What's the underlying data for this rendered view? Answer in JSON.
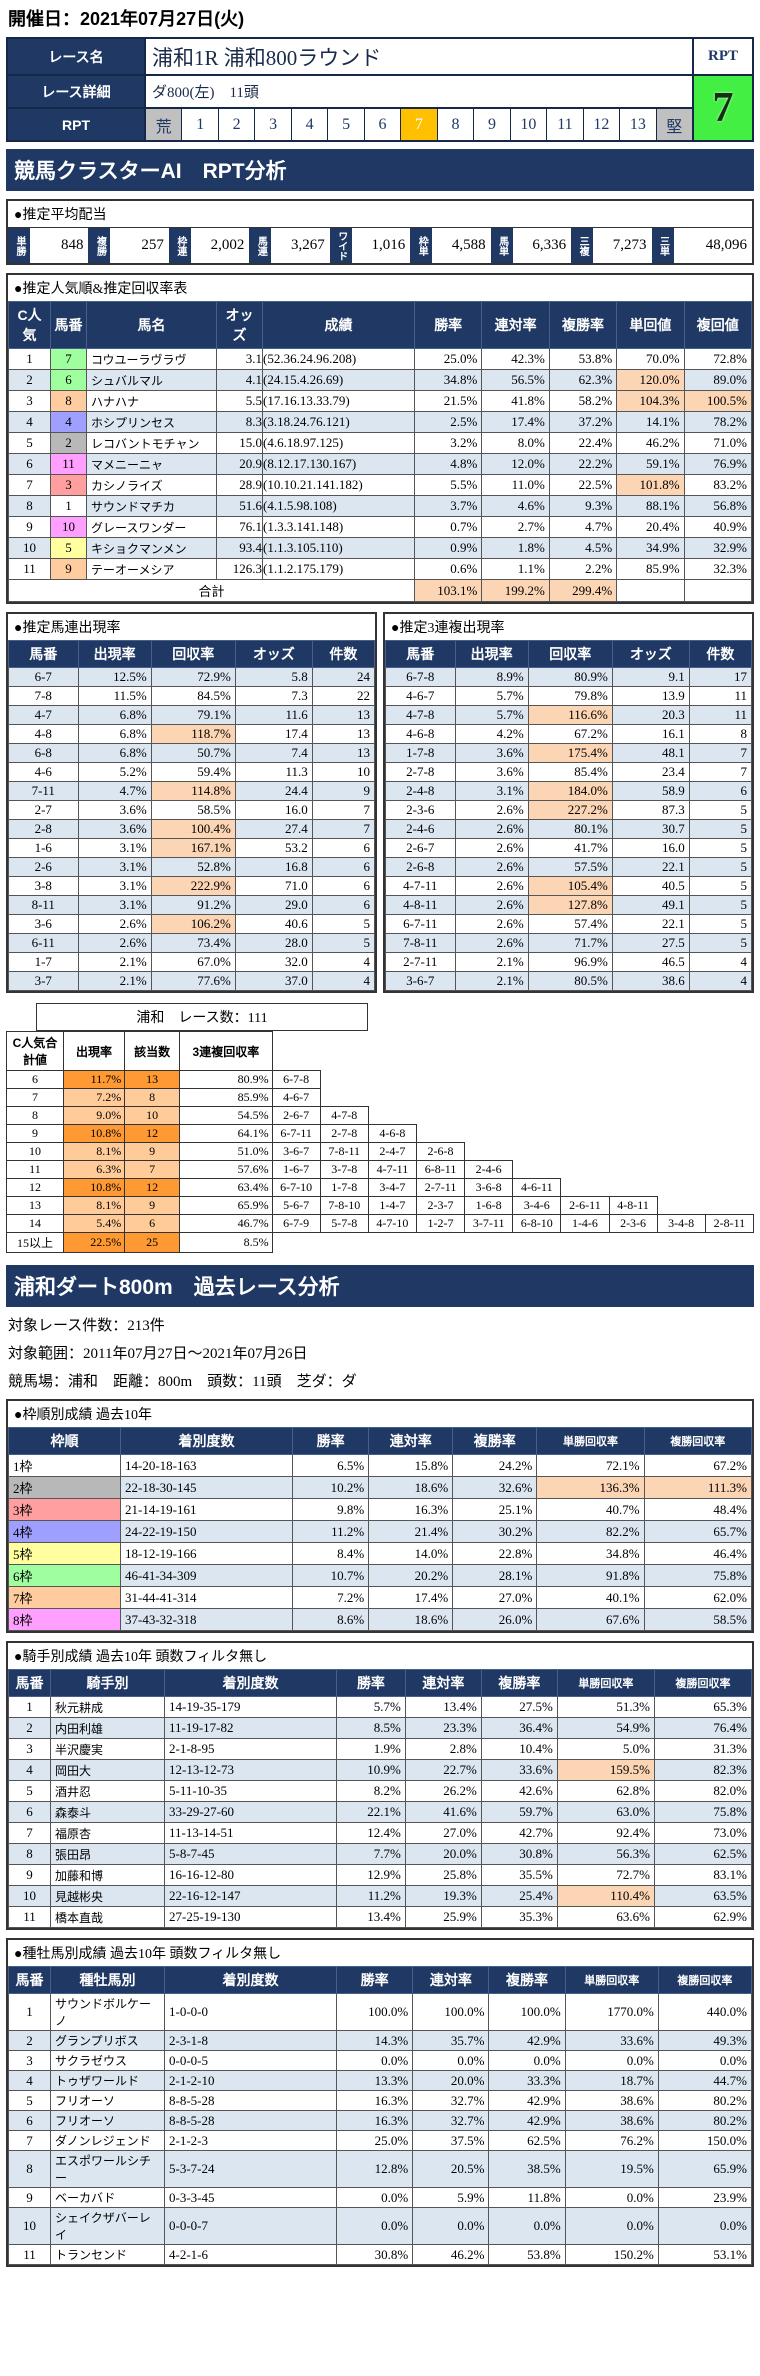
{
  "colors": {
    "navy": "#1f3864",
    "stripe": "#dce6f1",
    "highlight": "#fcd5b4",
    "rpt_selected": "#ffc000",
    "rpt_edge_gray": "#c0c0c0",
    "rpt_big_green": "#44ef44",
    "cpop_high": "#ff9933",
    "cpop_low": "#ffcc99",
    "waku": {
      "1": "#ffffff",
      "2": "#b8b8b8",
      "3": "#ff9f9f",
      "4": "#9f9fff",
      "5": "#ffff9f",
      "6": "#9fff9f",
      "7": "#ffcc9f",
      "8": "#ff9fff"
    }
  },
  "page": {
    "date_header": "開催日：2021年07月27日(火)"
  },
  "race_info": {
    "name_label": "レース名",
    "name": "浦和1R 浦和800ラウンド",
    "detail_label": "レース詳細",
    "detail": "ダ800(左)　11頭",
    "rpt_label": "RPT",
    "rpt_box_label": "RPT",
    "rpt_value": "7",
    "rpt_scale": [
      "荒",
      "1",
      "2",
      "3",
      "4",
      "5",
      "6",
      "7",
      "8",
      "9",
      "10",
      "11",
      "12",
      "13",
      "堅"
    ],
    "rpt_selected": "7"
  },
  "section1": {
    "title": "競馬クラスターAI　RPT分析"
  },
  "payouts": {
    "title": "●推定平均配当",
    "items": [
      {
        "label": "単勝",
        "value": "848"
      },
      {
        "label": "複勝",
        "value": "257"
      },
      {
        "label": "枠連",
        "value": "2,002"
      },
      {
        "label": "馬連",
        "value": "3,267"
      },
      {
        "label": "ワイド",
        "value": "1,016"
      },
      {
        "label": "枠単",
        "value": "4,588"
      },
      {
        "label": "馬単",
        "value": "6,336"
      },
      {
        "label": "三複",
        "value": "7,273"
      },
      {
        "label": "三単",
        "value": "48,096"
      }
    ]
  },
  "popularity_table": {
    "title": "●推定人気順&推定回収率表",
    "headers": [
      "C人気",
      "馬番",
      "馬名",
      "オッズ",
      "成績",
      "勝率",
      "連対率",
      "複勝率",
      "単回値",
      "複回値"
    ],
    "rows": [
      {
        "rank": "1",
        "num": "7",
        "waku": 6,
        "name": "コウユーラヴラヴ",
        "odds": "3.1",
        "record": "(52.36.24.96.208)",
        "values": [
          "25.0%",
          "42.3%",
          "53.8%",
          "70.0%",
          "72.8%"
        ]
      },
      {
        "rank": "2",
        "num": "6",
        "waku": 6,
        "name": "シュバルマル",
        "odds": "4.1",
        "record": "(24.15.4.26.69)",
        "values": [
          "34.8%",
          "56.5%",
          "62.3%",
          "120.0%",
          "89.0%"
        ]
      },
      {
        "rank": "3",
        "num": "8",
        "waku": 7,
        "name": "ハナハナ",
        "odds": "5.5",
        "record": "(17.16.13.33.79)",
        "values": [
          "21.5%",
          "41.8%",
          "58.2%",
          "104.3%",
          "100.5%"
        ]
      },
      {
        "rank": "4",
        "num": "4",
        "waku": 4,
        "name": "ホシプリンセス",
        "odds": "8.3",
        "record": "(3.18.24.76.121)",
        "values": [
          "2.5%",
          "17.4%",
          "37.2%",
          "14.1%",
          "78.2%"
        ]
      },
      {
        "rank": "5",
        "num": "2",
        "waku": 2,
        "name": "レコバントモチャン",
        "odds": "15.0",
        "record": "(4.6.18.97.125)",
        "values": [
          "3.2%",
          "8.0%",
          "22.4%",
          "46.2%",
          "71.0%"
        ]
      },
      {
        "rank": "6",
        "num": "11",
        "waku": 8,
        "name": "マメニーニャ",
        "odds": "20.9",
        "record": "(8.12.17.130.167)",
        "values": [
          "4.8%",
          "12.0%",
          "22.2%",
          "59.1%",
          "76.9%"
        ]
      },
      {
        "rank": "7",
        "num": "3",
        "waku": 3,
        "name": "カシノライズ",
        "odds": "28.9",
        "record": "(10.10.21.141.182)",
        "values": [
          "5.5%",
          "11.0%",
          "22.5%",
          "101.8%",
          "83.2%"
        ]
      },
      {
        "rank": "8",
        "num": "1",
        "waku": 1,
        "name": "サウンドマチカ",
        "odds": "51.6",
        "record": "(4.1.5.98.108)",
        "values": [
          "3.7%",
          "4.6%",
          "9.3%",
          "88.1%",
          "56.8%"
        ]
      },
      {
        "rank": "9",
        "num": "10",
        "waku": 8,
        "name": "グレースワンダー",
        "odds": "76.1",
        "record": "(1.3.3.141.148)",
        "values": [
          "0.7%",
          "2.7%",
          "4.7%",
          "20.4%",
          "40.9%"
        ]
      },
      {
        "rank": "10",
        "num": "5",
        "waku": 5,
        "name": "キショクマンメン",
        "odds": "93.4",
        "record": "(1.1.3.105.110)",
        "values": [
          "0.9%",
          "1.8%",
          "4.5%",
          "34.9%",
          "32.9%"
        ]
      },
      {
        "rank": "11",
        "num": "9",
        "waku": 7,
        "name": "テーオーメシア",
        "odds": "126.3",
        "record": "(1.1.2.175.179)",
        "values": [
          "0.6%",
          "1.1%",
          "2.2%",
          "85.9%",
          "32.3%"
        ]
      }
    ],
    "total": {
      "label": "合計",
      "values": [
        "103.1%",
        "199.2%",
        "299.4%"
      ]
    }
  },
  "umaren_table": {
    "title": "●推定馬連出現率",
    "headers": [
      "馬番",
      "出現率",
      "回収率",
      "オッズ",
      "件数"
    ],
    "rows": [
      [
        "6-7",
        "12.5%",
        "72.9%",
        "5.8",
        "24"
      ],
      [
        "7-8",
        "11.5%",
        "84.5%",
        "7.3",
        "22"
      ],
      [
        "4-7",
        "6.8%",
        "79.1%",
        "11.6",
        "13"
      ],
      [
        "4-8",
        "6.8%",
        "118.7%",
        "17.4",
        "13"
      ],
      [
        "6-8",
        "6.8%",
        "50.7%",
        "7.4",
        "13"
      ],
      [
        "4-6",
        "5.2%",
        "59.4%",
        "11.3",
        "10"
      ],
      [
        "7-11",
        "4.7%",
        "114.8%",
        "24.4",
        "9"
      ],
      [
        "2-7",
        "3.6%",
        "58.5%",
        "16.0",
        "7"
      ],
      [
        "2-8",
        "3.6%",
        "100.4%",
        "27.4",
        "7"
      ],
      [
        "1-6",
        "3.1%",
        "167.1%",
        "53.2",
        "6"
      ],
      [
        "2-6",
        "3.1%",
        "52.8%",
        "16.8",
        "6"
      ],
      [
        "3-8",
        "3.1%",
        "222.9%",
        "71.0",
        "6"
      ],
      [
        "8-11",
        "3.1%",
        "91.2%",
        "29.0",
        "6"
      ],
      [
        "3-6",
        "2.6%",
        "106.2%",
        "40.6",
        "5"
      ],
      [
        "6-11",
        "2.6%",
        "73.4%",
        "28.0",
        "5"
      ],
      [
        "1-7",
        "2.1%",
        "67.0%",
        "32.0",
        "4"
      ],
      [
        "3-7",
        "2.1%",
        "77.6%",
        "37.0",
        "4"
      ]
    ]
  },
  "sanren_table": {
    "title": "●推定3連複出現率",
    "headers": [
      "馬番",
      "出現率",
      "回収率",
      "オッズ",
      "件数"
    ],
    "rows": [
      [
        "6-7-8",
        "8.9%",
        "80.9%",
        "9.1",
        "17"
      ],
      [
        "4-6-7",
        "5.7%",
        "79.8%",
        "13.9",
        "11"
      ],
      [
        "4-7-8",
        "5.7%",
        "116.6%",
        "20.3",
        "11"
      ],
      [
        "4-6-8",
        "4.2%",
        "67.2%",
        "16.1",
        "8"
      ],
      [
        "1-7-8",
        "3.6%",
        "175.4%",
        "48.1",
        "7"
      ],
      [
        "2-7-8",
        "3.6%",
        "85.4%",
        "23.4",
        "7"
      ],
      [
        "2-4-8",
        "3.1%",
        "184.0%",
        "58.9",
        "6"
      ],
      [
        "2-3-6",
        "2.6%",
        "227.2%",
        "87.3",
        "5"
      ],
      [
        "2-4-6",
        "2.6%",
        "80.1%",
        "30.7",
        "5"
      ],
      [
        "2-6-7",
        "2.6%",
        "41.7%",
        "16.0",
        "5"
      ],
      [
        "2-6-8",
        "2.6%",
        "57.5%",
        "22.1",
        "5"
      ],
      [
        "4-7-11",
        "2.6%",
        "105.4%",
        "40.5",
        "5"
      ],
      [
        "4-8-11",
        "2.6%",
        "127.8%",
        "49.1",
        "5"
      ],
      [
        "6-7-11",
        "2.6%",
        "57.4%",
        "22.1",
        "5"
      ],
      [
        "7-8-11",
        "2.6%",
        "71.7%",
        "27.5",
        "5"
      ],
      [
        "2-7-11",
        "2.1%",
        "96.9%",
        "46.5",
        "4"
      ],
      [
        "3-6-7",
        "2.1%",
        "80.5%",
        "38.6",
        "4"
      ]
    ]
  },
  "cpop_table": {
    "race_count_label": "浦和　レース数：111",
    "headers": [
      "C人気合計値",
      "出現率",
      "該当数",
      "3連複回収率"
    ],
    "rows": [
      {
        "label": "6",
        "rate": "11.7%",
        "count": "13",
        "payback": "80.9%",
        "level": "high",
        "combos": [
          "6-7-8"
        ]
      },
      {
        "label": "7",
        "rate": "7.2%",
        "count": "8",
        "payback": "85.9%",
        "level": "low",
        "combos": [
          "4-6-7"
        ]
      },
      {
        "label": "8",
        "rate": "9.0%",
        "count": "10",
        "payback": "54.5%",
        "level": "low",
        "combos": [
          "2-6-7",
          "4-7-8"
        ]
      },
      {
        "label": "9",
        "rate": "10.8%",
        "count": "12",
        "payback": "64.1%",
        "level": "high",
        "combos": [
          "6-7-11",
          "2-7-8",
          "4-6-8"
        ]
      },
      {
        "label": "10",
        "rate": "8.1%",
        "count": "9",
        "payback": "51.0%",
        "level": "low",
        "combos": [
          "3-6-7",
          "7-8-11",
          "2-4-7",
          "2-6-8"
        ]
      },
      {
        "label": "11",
        "rate": "6.3%",
        "count": "7",
        "payback": "57.6%",
        "level": "low",
        "combos": [
          "1-6-7",
          "3-7-8",
          "4-7-11",
          "6-8-11",
          "2-4-6"
        ]
      },
      {
        "label": "12",
        "rate": "10.8%",
        "count": "12",
        "payback": "63.4%",
        "level": "high",
        "combos": [
          "6-7-10",
          "1-7-8",
          "3-4-7",
          "2-7-11",
          "3-6-8",
          "4-6-11"
        ]
      },
      {
        "label": "13",
        "rate": "8.1%",
        "count": "9",
        "payback": "65.9%",
        "level": "low",
        "combos": [
          "5-6-7",
          "7-8-10",
          "1-4-7",
          "2-3-7",
          "1-6-8",
          "3-4-6",
          "2-6-11",
          "4-8-11"
        ]
      },
      {
        "label": "14",
        "rate": "5.4%",
        "count": "6",
        "payback": "46.7%",
        "level": "low",
        "combos": [
          "6-7-9",
          "5-7-8",
          "4-7-10",
          "1-2-7",
          "3-7-11",
          "6-8-10",
          "1-4-6",
          "2-3-6",
          "3-4-8",
          "2-8-11"
        ]
      },
      {
        "label": "15以上",
        "rate": "22.5%",
        "count": "25",
        "payback": "8.5%",
        "level": "high",
        "combos": []
      }
    ]
  },
  "section2": {
    "title": "浦和ダート800m　過去レース分析",
    "lines": [
      "対象レース件数：213件",
      "対象範囲：2011年07月27日～2021年07月26日",
      "競馬場：浦和　距離：800m　頭数：11頭　芝ダ：ダ"
    ]
  },
  "waku_table": {
    "title": "●枠順別成績 過去10年",
    "headers": [
      "枠順",
      "着別度数",
      "勝率",
      "連対率",
      "複勝率",
      "単勝回収率",
      "複勝回収率"
    ],
    "rows": [
      {
        "label": "1枠",
        "waku": 1,
        "record": "14-20-18-163",
        "values": [
          "6.5%",
          "15.8%",
          "24.2%",
          "72.1%",
          "67.2%"
        ]
      },
      {
        "label": "2枠",
        "waku": 2,
        "record": "22-18-30-145",
        "values": [
          "10.2%",
          "18.6%",
          "32.6%",
          "136.3%",
          "111.3%"
        ]
      },
      {
        "label": "3枠",
        "waku": 3,
        "record": "21-14-19-161",
        "values": [
          "9.8%",
          "16.3%",
          "25.1%",
          "40.7%",
          "48.4%"
        ]
      },
      {
        "label": "4枠",
        "waku": 4,
        "record": "24-22-19-150",
        "values": [
          "11.2%",
          "21.4%",
          "30.2%",
          "82.2%",
          "65.7%"
        ]
      },
      {
        "label": "5枠",
        "waku": 5,
        "record": "18-12-19-166",
        "values": [
          "8.4%",
          "14.0%",
          "22.8%",
          "34.8%",
          "46.4%"
        ]
      },
      {
        "label": "6枠",
        "waku": 6,
        "record": "46-41-34-309",
        "values": [
          "10.7%",
          "20.2%",
          "28.1%",
          "91.8%",
          "75.8%"
        ]
      },
      {
        "label": "7枠",
        "waku": 7,
        "record": "31-44-41-314",
        "values": [
          "7.2%",
          "17.4%",
          "27.0%",
          "40.1%",
          "62.0%"
        ]
      },
      {
        "label": "8枠",
        "waku": 8,
        "record": "37-43-32-318",
        "values": [
          "8.6%",
          "18.6%",
          "26.0%",
          "67.6%",
          "58.5%"
        ]
      }
    ]
  },
  "jockey_table": {
    "title": "●騎手別成績 過去10年 頭数フィルタ無し",
    "headers": [
      "馬番",
      "騎手別",
      "着別度数",
      "勝率",
      "連対率",
      "複勝率",
      "単勝回収率",
      "複勝回収率"
    ],
    "rows": [
      {
        "num": "1",
        "name": "秋元耕成",
        "record": "14-19-35-179",
        "values": [
          "5.7%",
          "13.4%",
          "27.5%",
          "51.3%",
          "65.3%"
        ]
      },
      {
        "num": "2",
        "name": "内田利雄",
        "record": "11-19-17-82",
        "values": [
          "8.5%",
          "23.3%",
          "36.4%",
          "54.9%",
          "76.4%"
        ]
      },
      {
        "num": "3",
        "name": "半沢慶実",
        "record": "2-1-8-95",
        "values": [
          "1.9%",
          "2.8%",
          "10.4%",
          "5.0%",
          "31.3%"
        ]
      },
      {
        "num": "4",
        "name": "岡田大",
        "record": "12-13-12-73",
        "values": [
          "10.9%",
          "22.7%",
          "33.6%",
          "159.5%",
          "82.3%"
        ]
      },
      {
        "num": "5",
        "name": "酒井忍",
        "record": "5-11-10-35",
        "values": [
          "8.2%",
          "26.2%",
          "42.6%",
          "62.8%",
          "82.0%"
        ]
      },
      {
        "num": "6",
        "name": "森泰斗",
        "record": "33-29-27-60",
        "values": [
          "22.1%",
          "41.6%",
          "59.7%",
          "63.0%",
          "75.8%"
        ]
      },
      {
        "num": "7",
        "name": "福原杏",
        "record": "11-13-14-51",
        "values": [
          "12.4%",
          "27.0%",
          "42.7%",
          "92.4%",
          "73.0%"
        ]
      },
      {
        "num": "8",
        "name": "張田昂",
        "record": "5-8-7-45",
        "values": [
          "7.7%",
          "20.0%",
          "30.8%",
          "56.3%",
          "62.5%"
        ]
      },
      {
        "num": "9",
        "name": "加藤和博",
        "record": "16-16-12-80",
        "values": [
          "12.9%",
          "25.8%",
          "35.5%",
          "72.7%",
          "83.1%"
        ]
      },
      {
        "num": "10",
        "name": "見越彬央",
        "record": "22-16-12-147",
        "values": [
          "11.2%",
          "19.3%",
          "25.4%",
          "110.4%",
          "63.5%"
        ]
      },
      {
        "num": "11",
        "name": "橋本直哉",
        "record": "27-25-19-130",
        "values": [
          "13.4%",
          "25.9%",
          "35.3%",
          "63.6%",
          "62.9%"
        ]
      }
    ]
  },
  "sire_table": {
    "title": "●種牡馬別成績 過去10年 頭数フィルタ無し",
    "headers": [
      "馬番",
      "種牡馬別",
      "着別度数",
      "勝率",
      "連対率",
      "複勝率",
      "単勝回収率",
      "複勝回収率"
    ],
    "rows": [
      {
        "num": "1",
        "name": "サウンドボルケーノ",
        "record": "1-0-0-0",
        "values": [
          "100.0%",
          "100.0%",
          "100.0%",
          "1770.0%",
          "440.0%"
        ]
      },
      {
        "num": "2",
        "name": "グランプリボス",
        "record": "2-3-1-8",
        "values": [
          "14.3%",
          "35.7%",
          "42.9%",
          "33.6%",
          "49.3%"
        ]
      },
      {
        "num": "3",
        "name": "サクラゼウス",
        "record": "0-0-0-5",
        "values": [
          "0.0%",
          "0.0%",
          "0.0%",
          "0.0%",
          "0.0%"
        ]
      },
      {
        "num": "4",
        "name": "トゥザワールド",
        "record": "2-1-2-10",
        "values": [
          "13.3%",
          "20.0%",
          "33.3%",
          "18.7%",
          "44.7%"
        ]
      },
      {
        "num": "5",
        "name": "フリオーソ",
        "record": "8-8-5-28",
        "values": [
          "16.3%",
          "32.7%",
          "42.9%",
          "38.6%",
          "80.2%"
        ]
      },
      {
        "num": "6",
        "name": "フリオーソ",
        "record": "8-8-5-28",
        "values": [
          "16.3%",
          "32.7%",
          "42.9%",
          "38.6%",
          "80.2%"
        ]
      },
      {
        "num": "7",
        "name": "ダノンレジェンド",
        "record": "2-1-2-3",
        "values": [
          "25.0%",
          "37.5%",
          "62.5%",
          "76.2%",
          "150.0%"
        ]
      },
      {
        "num": "8",
        "name": "エスポワールシチー",
        "record": "5-3-7-24",
        "values": [
          "12.8%",
          "20.5%",
          "38.5%",
          "19.5%",
          "65.9%"
        ]
      },
      {
        "num": "9",
        "name": "ベーカバド",
        "record": "0-3-3-45",
        "values": [
          "0.0%",
          "5.9%",
          "11.8%",
          "0.0%",
          "23.9%"
        ]
      },
      {
        "num": "10",
        "name": "シェイクザバーレイ",
        "record": "0-0-0-7",
        "values": [
          "0.0%",
          "0.0%",
          "0.0%",
          "0.0%",
          "0.0%"
        ]
      },
      {
        "num": "11",
        "name": "トランセンド",
        "record": "4-2-1-6",
        "values": [
          "30.8%",
          "46.2%",
          "53.8%",
          "150.2%",
          "53.1%"
        ]
      }
    ]
  }
}
